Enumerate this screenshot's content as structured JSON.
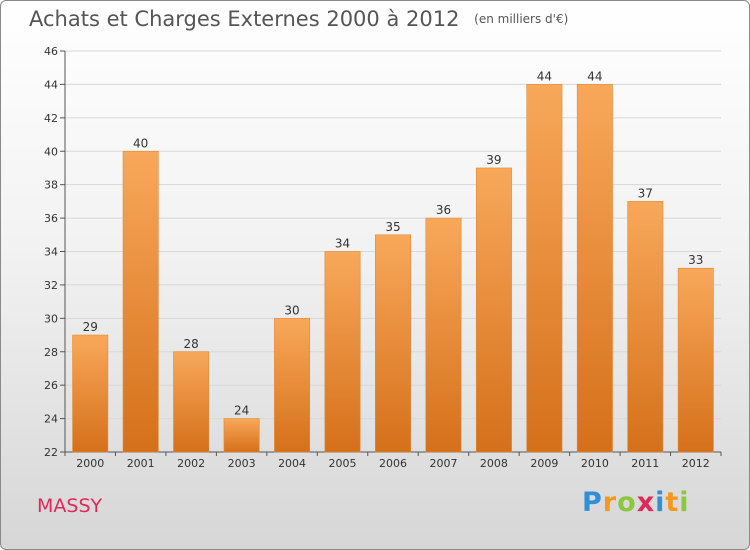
{
  "title": "Achats et Charges Externes 2000 à 2012",
  "subtitle": "(en milliers d'€)",
  "city": "MASSY",
  "logo": {
    "text": "Proxiti",
    "letters": [
      {
        "ch": "P",
        "color": "#2f8fd8"
      },
      {
        "ch": "r",
        "color": "#f39a1e"
      },
      {
        "ch": "o",
        "color": "#8dc63f"
      },
      {
        "ch": "x",
        "color": "#e0285a"
      },
      {
        "ch": "i",
        "color": "#2f8fd8"
      },
      {
        "ch": "t",
        "color": "#f39a1e"
      },
      {
        "ch": "i",
        "color": "#8dc63f"
      }
    ]
  },
  "colors": {
    "bar_top": "#f8a85a",
    "bar_bottom": "#d5701a",
    "accent_city": "#e0285a"
  },
  "chart_data": {
    "type": "bar",
    "title": "Achats et Charges Externes 2000 à 2012",
    "subtitle": "(en milliers d'€)",
    "categories": [
      "2000",
      "2001",
      "2002",
      "2003",
      "2004",
      "2005",
      "2006",
      "2007",
      "2008",
      "2009",
      "2010",
      "2011",
      "2012"
    ],
    "values": [
      29,
      40,
      28,
      24,
      30,
      34,
      35,
      36,
      39,
      44,
      44,
      37,
      33
    ],
    "ylim": [
      22,
      46
    ],
    "yticks": [
      22,
      24,
      26,
      28,
      30,
      32,
      34,
      36,
      38,
      40,
      42,
      44,
      46
    ],
    "xlabel": "",
    "ylabel": "",
    "grid": true
  }
}
